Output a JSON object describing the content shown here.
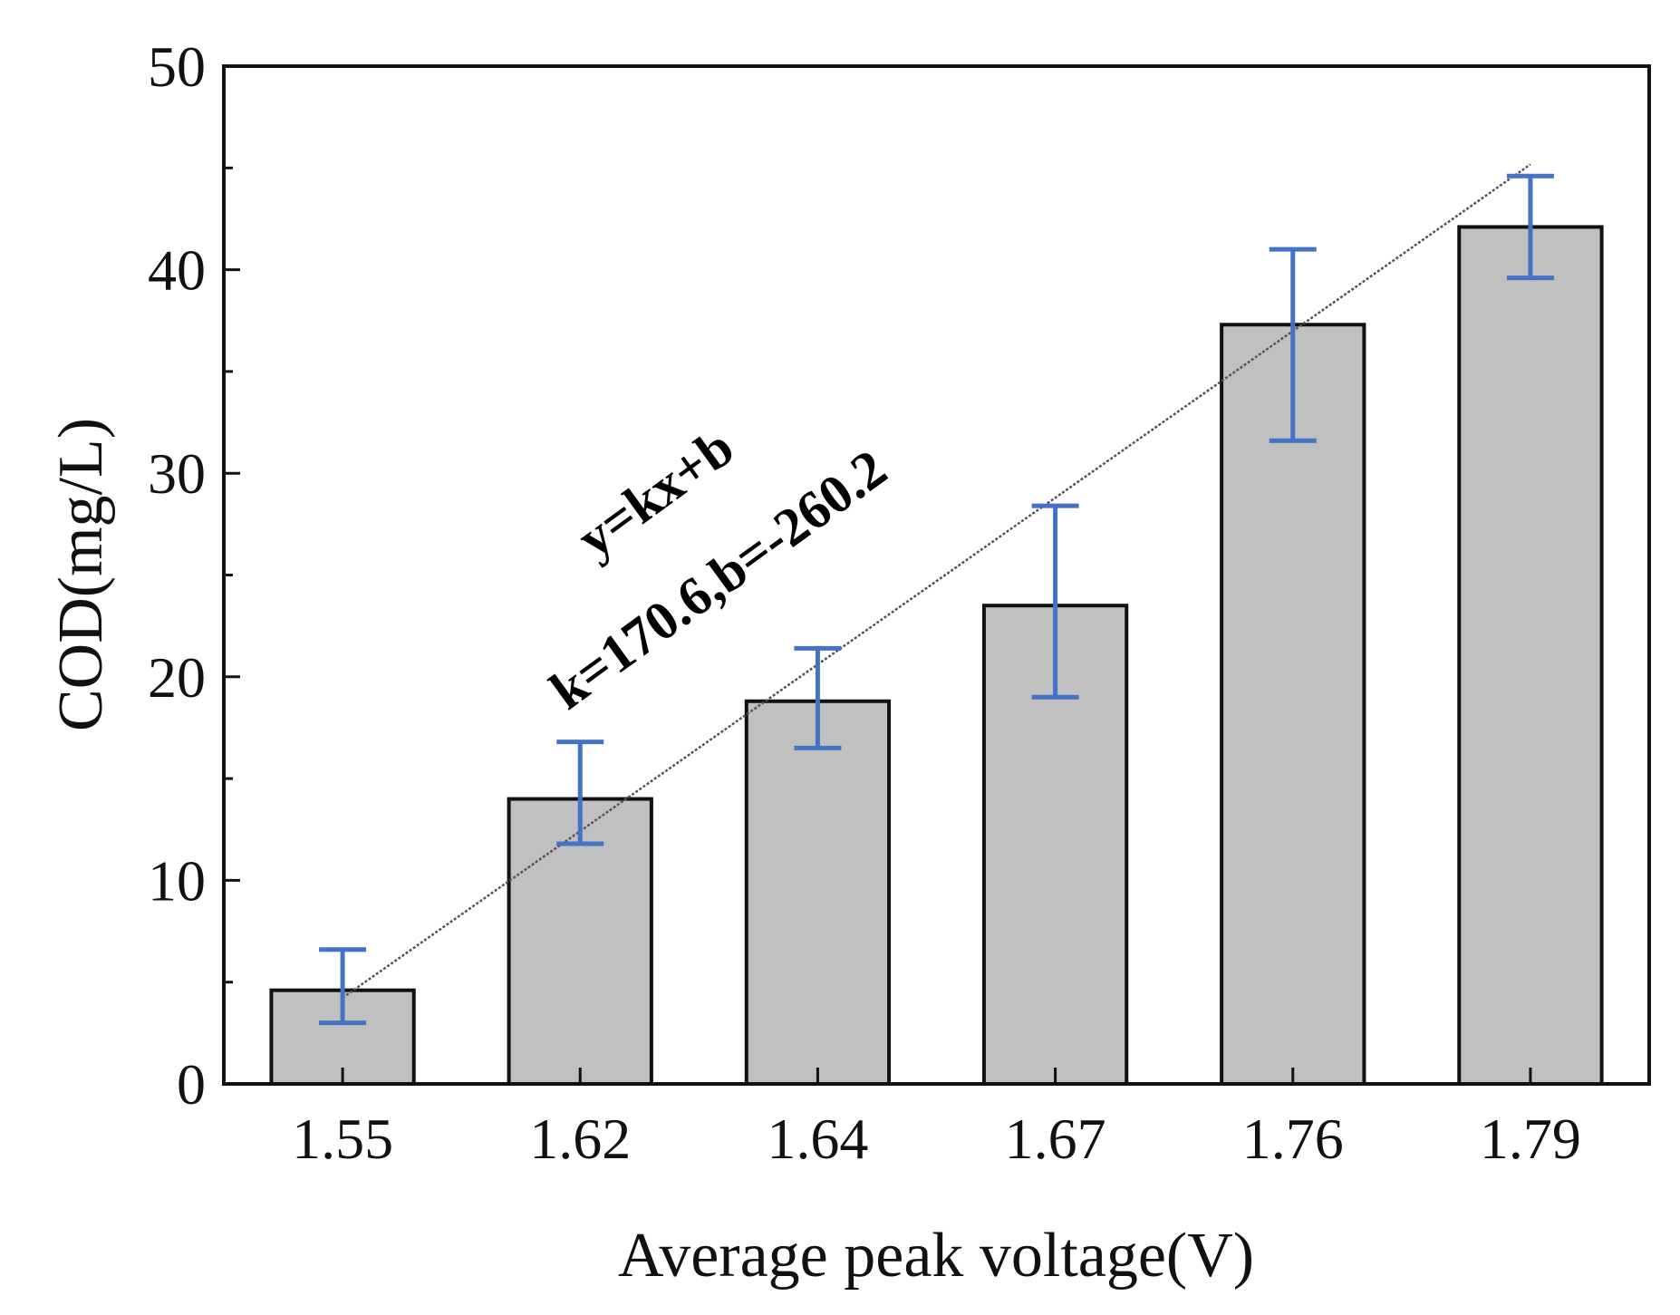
{
  "chart_data": {
    "type": "bar",
    "title": "",
    "xlabel": "Average peak voltage(V)",
    "ylabel": "COD(mg/L)",
    "categories": [
      "1.55",
      "1.62",
      "1.64",
      "1.67",
      "1.76",
      "1.79"
    ],
    "values": [
      4.6,
      14.0,
      18.8,
      23.5,
      37.3,
      42.1
    ],
    "error_bars": [
      {
        "low": 3.0,
        "high": 6.6
      },
      {
        "low": 11.8,
        "high": 16.8
      },
      {
        "low": 16.5,
        "high": 21.4
      },
      {
        "low": 19.0,
        "high": 28.4
      },
      {
        "low": 31.6,
        "high": 41.0
      },
      {
        "low": 39.6,
        "high": 44.6
      }
    ],
    "ylim": [
      0,
      50
    ],
    "yticks": [
      0,
      10,
      20,
      30,
      40,
      50
    ],
    "grid": false,
    "fit_line": {
      "type": "linear",
      "equation": "y=kx+b",
      "params": "k=170.6,b=-260.2",
      "k": 170.6,
      "b": -260.2
    },
    "colors": {
      "bar_fill": "#c0c0c0",
      "bar_stroke": "#111111",
      "error_bar": "#4472c4",
      "fit_line": "#555555"
    }
  }
}
